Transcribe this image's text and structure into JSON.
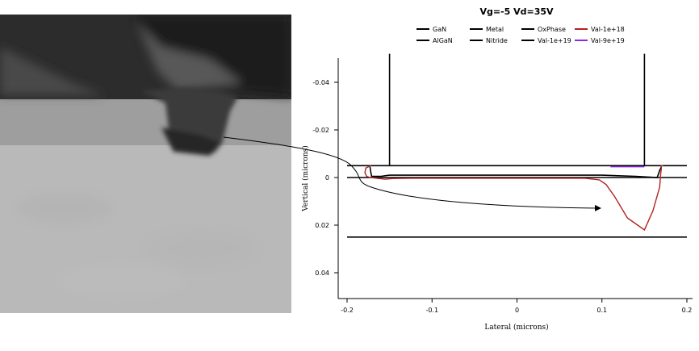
{
  "figure": {
    "micrograph": {
      "name": "cross-section-micrograph"
    }
  },
  "chart_data": {
    "type": "line",
    "title": "Vg=-5 Vd=35V",
    "xlabel": "Lateral (microns)",
    "ylabel": "Vertical (microns)",
    "xlim": [
      -0.2,
      0.2
    ],
    "ylim": [
      0.052,
      -0.052
    ],
    "y_inverted": true,
    "xticks": [
      {
        "value": -0.2,
        "label": "-0.2"
      },
      {
        "value": -0.1,
        "label": "-0.1"
      },
      {
        "value": 0,
        "label": "0"
      },
      {
        "value": 0.1,
        "label": "0.1"
      },
      {
        "value": 0.2,
        "label": "0.2"
      }
    ],
    "yticks": [
      {
        "value": -0.04,
        "label": "-0.04"
      },
      {
        "value": -0.02,
        "label": "-0.02"
      },
      {
        "value": 0,
        "label": "0"
      },
      {
        "value": 0.02,
        "label": "0.02"
      },
      {
        "value": 0.04,
        "label": "0.04"
      }
    ],
    "grid": false,
    "legend_position": "top",
    "legend": [
      {
        "name": "GaN",
        "color": "#000000"
      },
      {
        "name": "Metal",
        "color": "#000000"
      },
      {
        "name": "OxPhase",
        "color": "#000000"
      },
      {
        "name": "Val-1e+18",
        "color": "#b22222"
      },
      {
        "name": "AlGaN",
        "color": "#000000"
      },
      {
        "name": "Nitride",
        "color": "#000000"
      },
      {
        "name": "Val-1e+19",
        "color": "#000000"
      },
      {
        "name": "Val-9e+19",
        "color": "#8a2be2"
      }
    ],
    "series": [
      {
        "name": "GaN",
        "color": "#000000",
        "segments": [
          [
            [
              -0.2,
              0.025
            ],
            [
              0.2,
              0.025
            ]
          ]
        ]
      },
      {
        "name": "AlGaN",
        "color": "#000000",
        "segments": [
          [
            [
              -0.2,
              0.0
            ],
            [
              0.2,
              0.0
            ]
          ],
          [
            [
              -0.2,
              -0.005
            ],
            [
              0.2,
              -0.005
            ]
          ]
        ]
      },
      {
        "name": "Metal",
        "color": "#000000",
        "segments": [
          [
            [
              -0.15,
              -0.052
            ],
            [
              -0.15,
              -0.005
            ]
          ],
          [
            [
              0.15,
              -0.052
            ],
            [
              0.15,
              -0.005
            ]
          ]
        ]
      },
      {
        "name": "Val-1e+19",
        "color": "#000000",
        "segments": [
          [
            [
              -0.173,
              -0.0045
            ],
            [
              -0.172,
              -0.002
            ],
            [
              -0.171,
              -0.0005
            ],
            [
              -0.16,
              -0.0005
            ],
            [
              -0.15,
              -0.001
            ],
            [
              0.0,
              -0.001
            ],
            [
              0.1,
              -0.001
            ],
            [
              0.14,
              -0.0005
            ],
            [
              0.165,
              0.0
            ],
            [
              0.168,
              -0.003
            ],
            [
              0.17,
              -0.0045
            ]
          ]
        ]
      },
      {
        "name": "Val-9e+19",
        "color": "#8a2be2",
        "segments": [
          [
            [
              0.11,
              -0.0045
            ],
            [
              0.15,
              -0.0045
            ]
          ]
        ]
      },
      {
        "name": "Val-1e+18",
        "color": "#b22222",
        "segments": [
          [
            [
              -0.172,
              -0.005
            ],
            [
              -0.175,
              -0.0045
            ],
            [
              -0.178,
              -0.004
            ],
            [
              -0.179,
              -0.002
            ],
            [
              -0.177,
              -0.0005
            ],
            [
              -0.173,
              0.0
            ],
            [
              -0.165,
              0.0003
            ],
            [
              -0.155,
              0.0007
            ],
            [
              -0.145,
              0.0004
            ],
            [
              -0.12,
              0.0003
            ],
            [
              -0.05,
              0.0003
            ],
            [
              0.05,
              0.0003
            ],
            [
              0.08,
              0.0003
            ],
            [
              0.097,
              0.001
            ],
            [
              0.105,
              0.003
            ],
            [
              0.115,
              0.008
            ],
            [
              0.13,
              0.017
            ],
            [
              0.142,
              0.02
            ],
            [
              0.15,
              0.022
            ],
            [
              0.16,
              0.014
            ],
            [
              0.168,
              0.004
            ],
            [
              0.169,
              -0.001
            ],
            [
              0.17,
              -0.004
            ],
            [
              0.17,
              -0.005
            ],
            [
              0.172,
              -0.005
            ]
          ]
        ]
      }
    ],
    "annotations": [
      {
        "type": "arrow",
        "description": "curved arrow from gate-foot region of micrograph to depletion region"
      }
    ]
  }
}
